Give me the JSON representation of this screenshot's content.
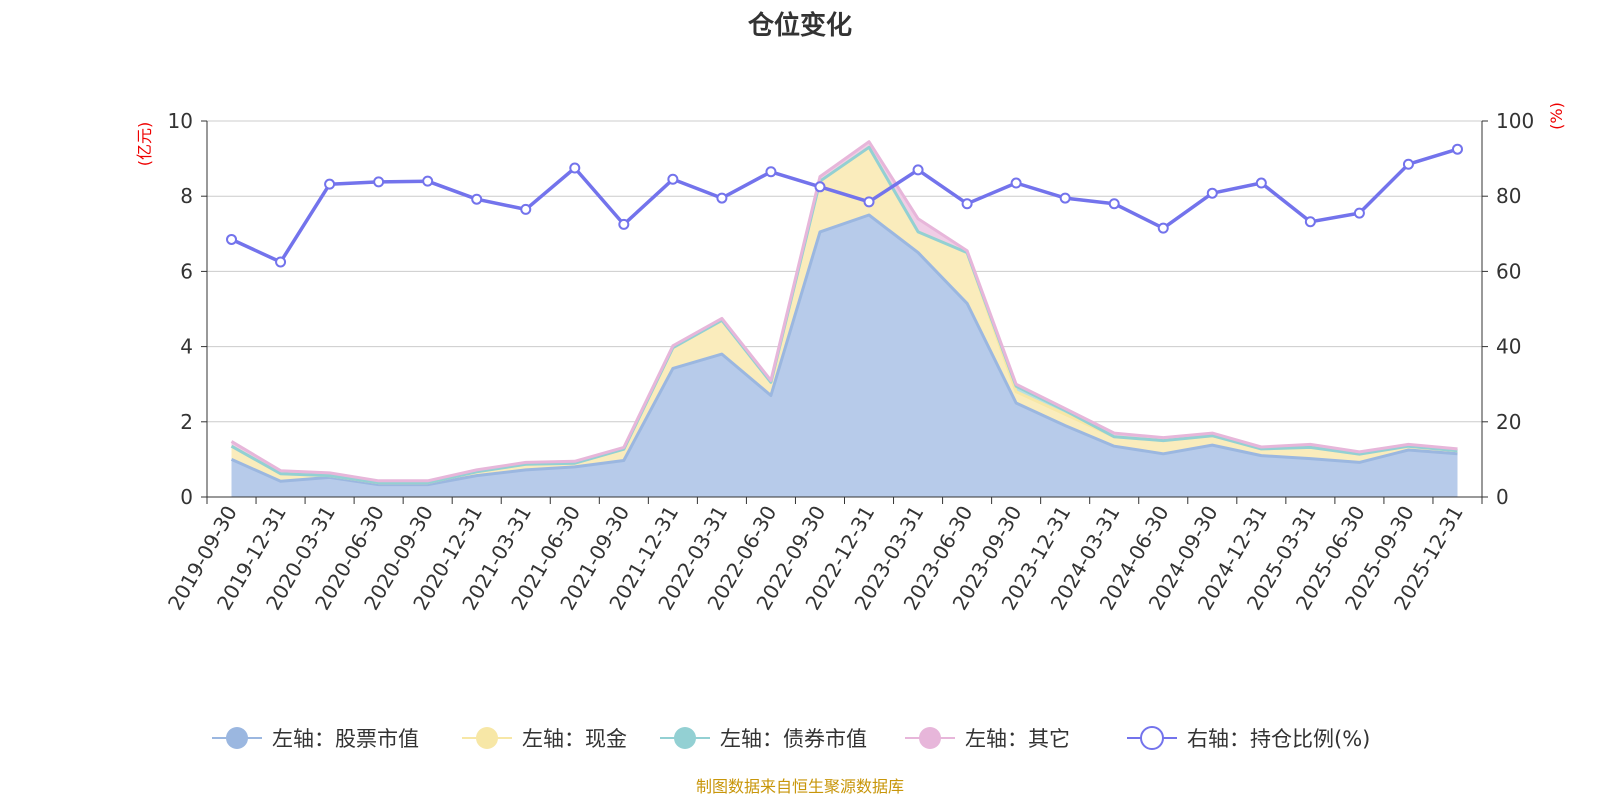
{
  "chart_data": {
    "type": "area",
    "title": "仓位变化",
    "left_axis": {
      "unit": "(亿元)",
      "ylim": [
        0,
        10
      ],
      "ticks": [
        0,
        2,
        4,
        6,
        8,
        10
      ]
    },
    "right_axis": {
      "unit": "(%)",
      "ylim": [
        0,
        100
      ],
      "ticks": [
        0,
        20,
        40,
        60,
        80,
        100
      ]
    },
    "categories": [
      "2019-09-30",
      "2019-12-31",
      "2020-03-31",
      "2020-06-30",
      "2020-09-30",
      "2020-12-31",
      "2021-03-31",
      "2021-06-30",
      "2021-09-30",
      "2021-12-31",
      "2022-03-31",
      "2022-06-30",
      "2022-09-30",
      "2022-12-31",
      "2023-03-31",
      "2023-06-30",
      "2023-09-30",
      "2023-12-31",
      "2024-03-31",
      "2024-06-30",
      "2024-09-30",
      "2024-12-31",
      "2025-03-31",
      "2025-06-30",
      "2025-09-30",
      "2025-12-31"
    ],
    "series": [
      {
        "name": "左轴：股票市值",
        "axis": "left",
        "stack": true,
        "color": "#9bb7e0",
        "fill": "#b7cbea",
        "values": [
          1.0,
          0.42,
          0.52,
          0.33,
          0.33,
          0.57,
          0.72,
          0.8,
          0.97,
          3.42,
          3.8,
          2.7,
          7.05,
          7.5,
          6.5,
          5.15,
          2.5,
          1.9,
          1.35,
          1.15,
          1.38,
          1.1,
          1.02,
          0.92,
          1.25,
          1.15
        ]
      },
      {
        "name": "左轴：现金",
        "axis": "left",
        "stack": true,
        "color": "#f7e7a6",
        "fill": "#faecbc",
        "values": [
          0.35,
          0.2,
          0.05,
          0.05,
          0.05,
          0.1,
          0.15,
          0.1,
          0.3,
          0.55,
          0.9,
          0.35,
          1.35,
          1.8,
          0.55,
          1.35,
          0.3,
          0.3,
          0.25,
          0.35,
          0.25,
          0.18,
          0.3,
          0.22,
          0.1,
          0.08
        ]
      },
      {
        "name": "左轴：债券市值",
        "axis": "left",
        "stack": true,
        "color": "#93d0d3",
        "fill": "#b7e0e2",
        "values": [
          0,
          0,
          0,
          0,
          0,
          0,
          0,
          0,
          0,
          0,
          0,
          0,
          0,
          0,
          0,
          0,
          0.15,
          0.1,
          0,
          0,
          0,
          0,
          0,
          0,
          0,
          0
        ]
      },
      {
        "name": "左轴：其它",
        "axis": "left",
        "stack": true,
        "color": "#e7b6da",
        "fill": "#f0cde6",
        "values": [
          0.13,
          0.08,
          0.07,
          0.05,
          0.05,
          0.05,
          0.05,
          0.05,
          0.05,
          0.05,
          0.05,
          0.05,
          0.12,
          0.15,
          0.35,
          0.05,
          0.05,
          0.05,
          0.1,
          0.08,
          0.07,
          0.05,
          0.08,
          0.06,
          0.05,
          0.05
        ]
      },
      {
        "name": "右轴：持仓比例(%)",
        "axis": "right",
        "stack": false,
        "color": "#7373ec",
        "values": [
          68.5,
          62.5,
          83.2,
          83.8,
          84.0,
          79.2,
          76.5,
          87.5,
          72.5,
          84.5,
          79.5,
          86.5,
          82.5,
          78.5,
          87.0,
          78.0,
          83.5,
          79.5,
          78.0,
          71.5,
          80.8,
          83.5,
          73.2,
          75.5,
          88.5,
          92.5
        ]
      }
    ],
    "legend": {
      "position": "bottom"
    },
    "grid": true
  },
  "footer": {
    "source": "制图数据来自恒生聚源数据库"
  }
}
